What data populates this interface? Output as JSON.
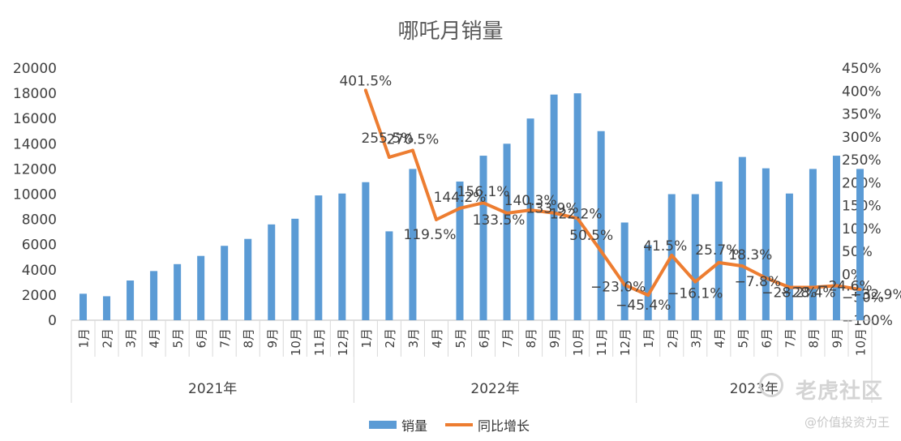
{
  "chart_data": {
    "type": "bar+line",
    "title": "哪吒月销量",
    "months": [
      "1月",
      "2月",
      "3月",
      "4月",
      "5月",
      "6月",
      "7月",
      "8月",
      "9月",
      "10月",
      "11月",
      "12月",
      "1月",
      "2月",
      "3月",
      "4月",
      "5月",
      "6月",
      "7月",
      "8月",
      "9月",
      "10月",
      "11月",
      "12月",
      "1月",
      "2月",
      "3月",
      "4月",
      "5月",
      "6月",
      "7月",
      "8月",
      "9月",
      "10月"
    ],
    "years": [
      {
        "label": "2021年",
        "count": 12
      },
      {
        "label": "2022年",
        "count": 12
      },
      {
        "label": "2023年",
        "count": 10
      }
    ],
    "series": [
      {
        "name": "销量",
        "type": "bar",
        "axis": "left",
        "color": "#5b9bd5",
        "values": [
          2100,
          1900,
          3150,
          3900,
          4450,
          5100,
          5900,
          6450,
          7600,
          8050,
          9900,
          10050,
          10950,
          7050,
          12000,
          null,
          11000,
          13050,
          14000,
          16000,
          17900,
          18000,
          15000,
          7750,
          5950,
          10000,
          10000,
          11000,
          12950,
          12050,
          10050,
          12000,
          13050,
          12000
        ]
      },
      {
        "name": "同比增长",
        "type": "line",
        "axis": "right",
        "color": "#ed7d31",
        "values": [
          401.5,
          255.5,
          270.5,
          119.5,
          144.2,
          156.1,
          133.5,
          140.3,
          133.9,
          122.2,
          50.5,
          -23.0,
          -45.4,
          41.5,
          -16.1,
          25.7,
          18.3,
          -7.8,
          -28.2,
          -28.4,
          -24.6,
          -32.9
        ],
        "labels": [
          "401.5%",
          "255.5%",
          "270.5%",
          "119.5%",
          "144.2%",
          "156.1%",
          "133.5%",
          "140.3%",
          "133.9%",
          "122.2%",
          "50.5%",
          "−23.0%",
          "−45.4%",
          "41.5%",
          "−16.1%",
          "25.7%",
          "18.3%",
          "−7.8%",
          "−28.2%",
          "−28.4%",
          "−24.6%",
          "−32.9%"
        ]
      }
    ],
    "line_start_index": 12,
    "left_axis": {
      "min": 0,
      "max": 20000,
      "step": 2000,
      "ticks": [
        "0",
        "2000",
        "4000",
        "6000",
        "8000",
        "10000",
        "12000",
        "14000",
        "16000",
        "18000",
        "20000"
      ]
    },
    "right_axis": {
      "min": -100,
      "max": 450,
      "step": 50,
      "ticks": [
        "−100%",
        "−50%",
        "0%",
        "50%",
        "100%",
        "150%",
        "200%",
        "250%",
        "300%",
        "350%",
        "400%",
        "450%"
      ]
    },
    "legend_position": "bottom"
  },
  "watermark": {
    "brand": "老虎社区",
    "handle": "@价值投资为王"
  }
}
